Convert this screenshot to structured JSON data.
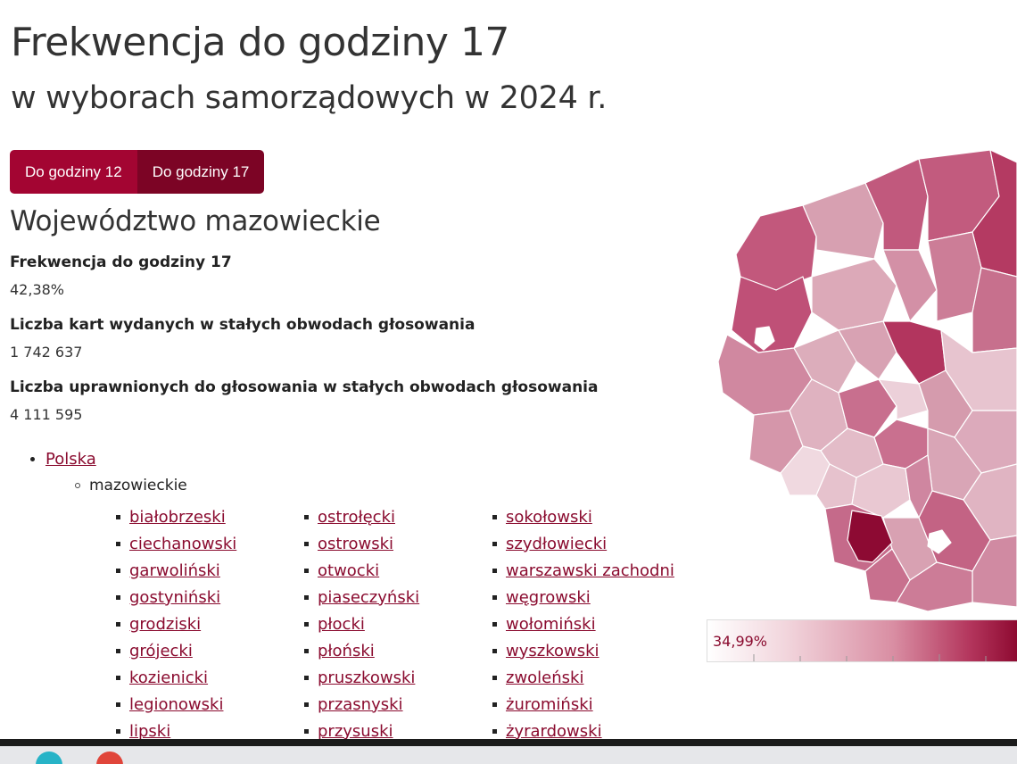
{
  "header": {
    "title": "Frekwencja do godziny 17",
    "subtitle": "w wyborach samorządowych w 2024 r."
  },
  "tabs": [
    {
      "label": "Do godziny 12",
      "active": false
    },
    {
      "label": "Do godziny 17",
      "active": true
    }
  ],
  "region": {
    "name": "Województwo mazowieckie",
    "stats": [
      {
        "label": "Frekwencja do godziny 17",
        "value": "42,38%"
      },
      {
        "label": "Liczba kart wydanych w stałych obwodach głosowania",
        "value": "1 742 637"
      },
      {
        "label": "Liczba uprawnionych do głosowania w stałych obwodach głosowania",
        "value": "4 111 595"
      }
    ]
  },
  "breadcrumb": {
    "root": "Polska",
    "current": "mazowieckie"
  },
  "counties": {
    "col1": [
      "białobrzeski",
      "ciechanowski",
      "garwoliński",
      "gostyniński",
      "grodziski",
      "grójecki",
      "kozienicki",
      "legionowski",
      "lipski"
    ],
    "col2": [
      "ostrołęcki",
      "ostrowski",
      "otwocki",
      "piaseczyński",
      "płocki",
      "płoński",
      "pruszkowski",
      "przasnyski",
      "przysuski"
    ],
    "col3": [
      "sokołowski",
      "szydłowiecki",
      "warszawski zachodni",
      "węgrowski",
      "wołomiński",
      "wyszkowski",
      "zwoleński",
      "żuromiński",
      "żyrardowski"
    ]
  },
  "legend": {
    "min_label": "34,99%"
  },
  "colors": {
    "accent": "#a30532",
    "accent_active": "#7c0425",
    "link": "#8a0b2f"
  }
}
